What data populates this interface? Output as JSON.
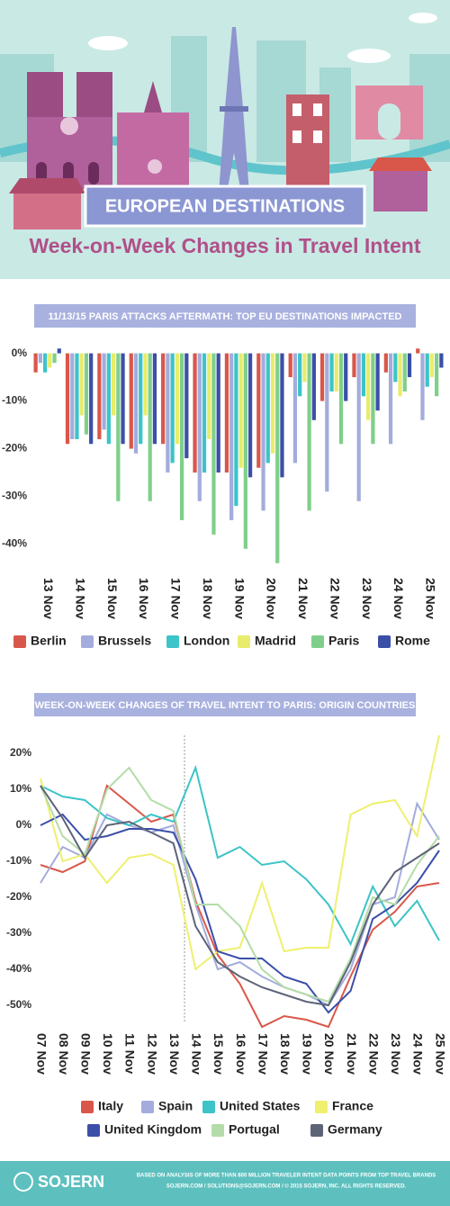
{
  "header": {
    "banner": "EUROPEAN DESTINATIONS",
    "subtitle": "Week-on-Week Changes in Travel Intent"
  },
  "chart_data": [
    {
      "type": "bar",
      "title": "11/13/15 PARIS ATTACKS AFTERMATH: TOP EU DESTINATIONS IMPACTED",
      "categories": [
        "13 Nov",
        "14 Nov",
        "15 Nov",
        "16 Nov",
        "17 Nov",
        "18 Nov",
        "19 Nov",
        "20 Nov",
        "21 Nov",
        "22 Nov",
        "23 Nov",
        "24 Nov",
        "25 Nov"
      ],
      "series": [
        {
          "name": "Berlin",
          "color": "#d9574a",
          "values": [
            -4,
            -19,
            -18,
            -20,
            -19,
            -25,
            -25,
            -24,
            -5,
            -10,
            -5,
            -4,
            1
          ]
        },
        {
          "name": "Brussels",
          "color": "#a3acdc",
          "values": [
            -2,
            -18,
            -16,
            -21,
            -25,
            -31,
            -35,
            -33,
            -23,
            -29,
            -31,
            -19,
            -14
          ]
        },
        {
          "name": "London",
          "color": "#3cc4c8",
          "values": [
            -4,
            -18,
            -19,
            -19,
            -23,
            -25,
            -32,
            -23,
            -9,
            -8,
            -9,
            -6,
            -7
          ]
        },
        {
          "name": "Madrid",
          "color": "#e9ec6a",
          "values": [
            -3,
            -13,
            -13,
            -13,
            -19,
            -18,
            -24,
            -21,
            -6,
            -8,
            -14,
            -9,
            -5
          ]
        },
        {
          "name": "Paris",
          "color": "#7fcf8a",
          "values": [
            -2,
            -17,
            -31,
            -31,
            -35,
            -38,
            -41,
            -44,
            -33,
            -19,
            -19,
            -8,
            -9
          ]
        },
        {
          "name": "Rome",
          "color": "#3b4fa8",
          "values": [
            1,
            -19,
            -19,
            -19,
            -22,
            -25,
            -26,
            -26,
            -14,
            -10,
            -12,
            -5,
            -3
          ]
        }
      ],
      "ylim": [
        -45,
        2
      ],
      "yticks": [
        {
          "value": 0,
          "label": "0%"
        },
        {
          "value": -10,
          "label": "-10%"
        },
        {
          "value": -20,
          "label": "-20%"
        },
        {
          "value": -30,
          "label": "-30%"
        },
        {
          "value": -40,
          "label": "-40%"
        }
      ],
      "grid": false,
      "legend": "bottom"
    },
    {
      "type": "line",
      "title": "WEEK-ON-WEEK CHANGES OF TRAVEL INTENT TO PARIS: ORIGIN COUNTRIES",
      "categories": [
        "07 Nov",
        "08 Nov",
        "09 Nov",
        "10 Nov",
        "11 Nov",
        "12 Nov",
        "13 Nov",
        "14 Nov",
        "15 Nov",
        "16 Nov",
        "17 Nov",
        "18 Nov",
        "19 Nov",
        "20 Nov",
        "21 Nov",
        "22 Nov",
        "23 Nov",
        "24 Nov",
        "25 Nov"
      ],
      "series": [
        {
          "name": "Italy",
          "color": "#d9574a",
          "values": [
            -11,
            -13,
            -10,
            11,
            6,
            1,
            3,
            -21,
            -36,
            -44,
            -56,
            -53,
            -54,
            -56,
            -42,
            -29,
            -24,
            -17,
            -16
          ]
        },
        {
          "name": "Spain",
          "color": "#a3acdc",
          "values": [
            -16,
            -6,
            -9,
            3,
            0,
            -2,
            0,
            -22,
            -40,
            -38,
            -42,
            -45,
            -47,
            -50,
            -40,
            -22,
            -20,
            6,
            -4
          ]
        },
        {
          "name": "United States",
          "color": "#3cc4c8",
          "values": [
            11,
            8,
            7,
            2,
            0,
            3,
            1,
            16,
            -9,
            -6,
            -11,
            -10,
            -15,
            -22,
            -33,
            -17,
            -28,
            -21,
            -32
          ]
        },
        {
          "name": "France",
          "color": "#eef06e",
          "values": [
            13,
            -10,
            -8,
            -16,
            -9,
            -8,
            -11,
            -40,
            -35,
            -34,
            -16,
            -35,
            -34,
            -34,
            3,
            6,
            7,
            -3,
            25
          ]
        },
        {
          "name": "United Kingdom",
          "color": "#3b4fa8",
          "values": [
            0,
            3,
            -4,
            -3,
            -1,
            -1,
            -2,
            -15,
            -35,
            -37,
            -37,
            -42,
            -44,
            -52,
            -46,
            -26,
            -22,
            -16,
            -7
          ]
        },
        {
          "name": "Portugal",
          "color": "#b3dca8",
          "values": [
            11,
            -3,
            -8,
            10,
            16,
            7,
            4,
            -22,
            -22,
            -28,
            -40,
            -45,
            -47,
            -49,
            -37,
            -20,
            -22,
            -11,
            -3
          ]
        },
        {
          "name": "Germany",
          "color": "#5d6478",
          "values": [
            11,
            2,
            -9,
            0,
            1,
            -2,
            -5,
            -28,
            -38,
            -42,
            -45,
            -47,
            -49,
            -50,
            -38,
            -22,
            -13,
            -9,
            -5
          ]
        }
      ],
      "ylim": [
        -55,
        25
      ],
      "yticks": [
        {
          "value": 20,
          "label": "20%"
        },
        {
          "value": 10,
          "label": "10%"
        },
        {
          "value": 0,
          "label": "0%"
        },
        {
          "value": -10,
          "label": "-10%"
        },
        {
          "value": -20,
          "label": "-20%"
        },
        {
          "value": -30,
          "label": "-30%"
        },
        {
          "value": -40,
          "label": "-40%"
        },
        {
          "value": -50,
          "label": "-50%"
        }
      ],
      "grid": false,
      "legend": "bottom"
    }
  ],
  "footer": {
    "brand": "SOJERN",
    "note": "BASED ON ANALYSIS OF MORE THAN 800 MILLION TRAVELER INTENT DATA POINTS FROM TOP TRAVEL BRANDS",
    "contact": "SOJERN.COM   /   SOLUTIONS@SOJERN.COM   /   © 2015 SOJERN, INC. ALL RIGHTS RESERVED."
  }
}
